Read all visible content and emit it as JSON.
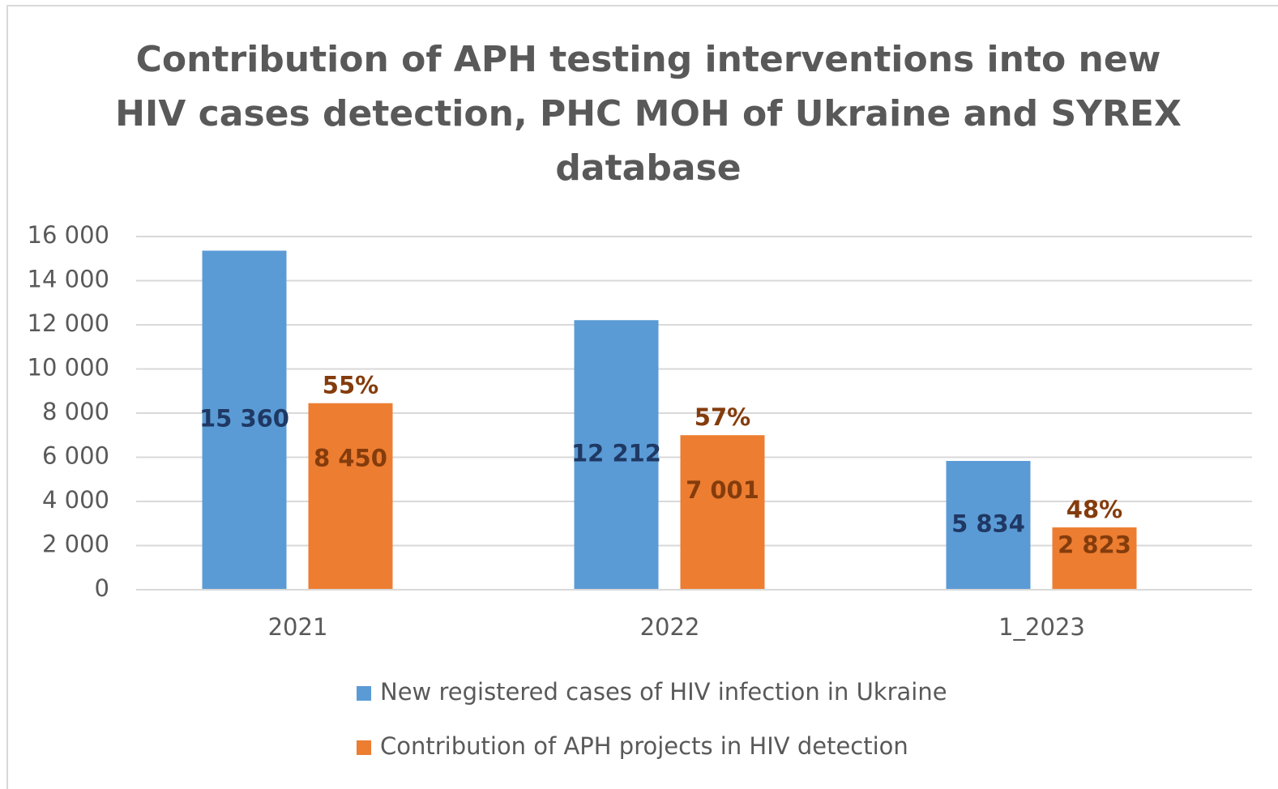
{
  "chart_data": {
    "type": "bar",
    "title": [
      "Contribution of APH testing interventions into new",
      "HIV cases detection, PHC MOH  of Ukraine and SYREX",
      "database"
    ],
    "categories": [
      "2021",
      "2022",
      "1_2023"
    ],
    "series": [
      {
        "name": "New registered cases of HIV infection in Ukraine",
        "color": "#5b9bd5",
        "values": [
          15360,
          12212,
          5834
        ],
        "value_labels": [
          "15 360",
          "12 212",
          "5 834"
        ]
      },
      {
        "name": "Contribution of APH projects in HIV detection",
        "color": "#ed7d31",
        "values": [
          8450,
          7001,
          2823
        ],
        "value_labels": [
          "8 450",
          "7 001",
          "2 823"
        ],
        "annotations": [
          "55%",
          "57%",
          "48%"
        ]
      }
    ],
    "ylim": [
      0,
      16000
    ],
    "yticks": [
      0,
      {
        "value": 2000,
        "label": "2 000"
      },
      {
        "value": 4000,
        "label": "4 000"
      },
      {
        "value": 6000,
        "label": "6 000"
      },
      {
        "value": 8000,
        "label": "8 000"
      },
      {
        "value": 10000,
        "label": "10 000"
      },
      {
        "value": 12000,
        "label": "12 000"
      },
      {
        "value": 14000,
        "label": "14 000"
      },
      {
        "value": 16000,
        "label": "16 000"
      }
    ],
    "grid": true,
    "legend": "bottom"
  }
}
